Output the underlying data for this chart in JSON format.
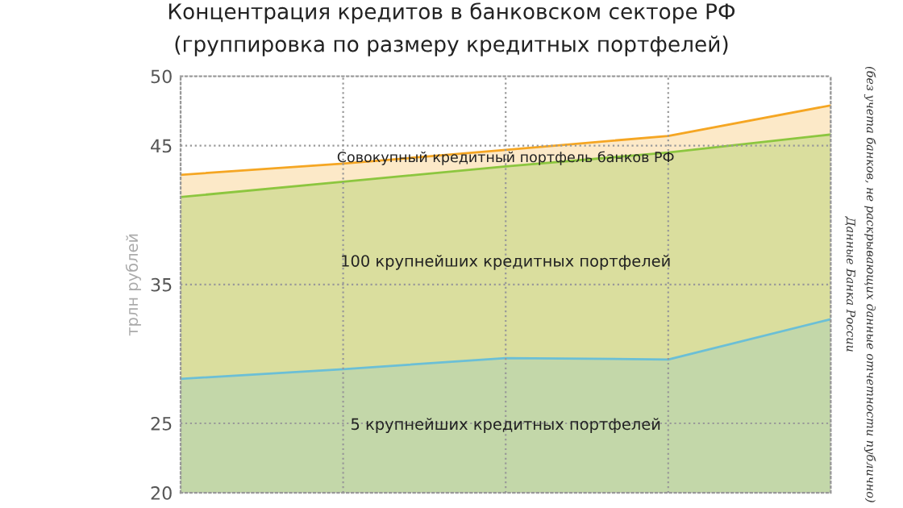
{
  "chart_data": {
    "type": "area",
    "title": "Концентрация кредитов в банковском секторе РФ",
    "subtitle": "(группировка по размеру кредитных портфелей)",
    "ylabel": "трлн рублей",
    "categories": [
      null,
      null,
      null,
      null,
      null
    ],
    "series": [
      {
        "name": "Совокупный кредитный портфель банков РФ",
        "color": "#f5a623",
        "values": [
          42.9,
          43.7,
          44.7,
          45.7,
          47.9
        ]
      },
      {
        "name": "100 крупнейших кредитных портфелей",
        "color": "#8cc63f",
        "values": [
          41.3,
          42.4,
          43.5,
          44.5,
          45.8
        ]
      },
      {
        "name": "5 крупнейших кредитных портфелей",
        "color": "#6bbfd6",
        "values": [
          28.2,
          28.9,
          29.7,
          29.6,
          32.5
        ]
      }
    ],
    "ylim": [
      20,
      50
    ],
    "yticks": [
      20,
      25,
      35,
      45,
      50
    ],
    "grid": true,
    "legend": false,
    "annotations": [
      "Данные Банка России",
      "(без учета банков, не раскрывающих данные отчетности публично)"
    ]
  }
}
